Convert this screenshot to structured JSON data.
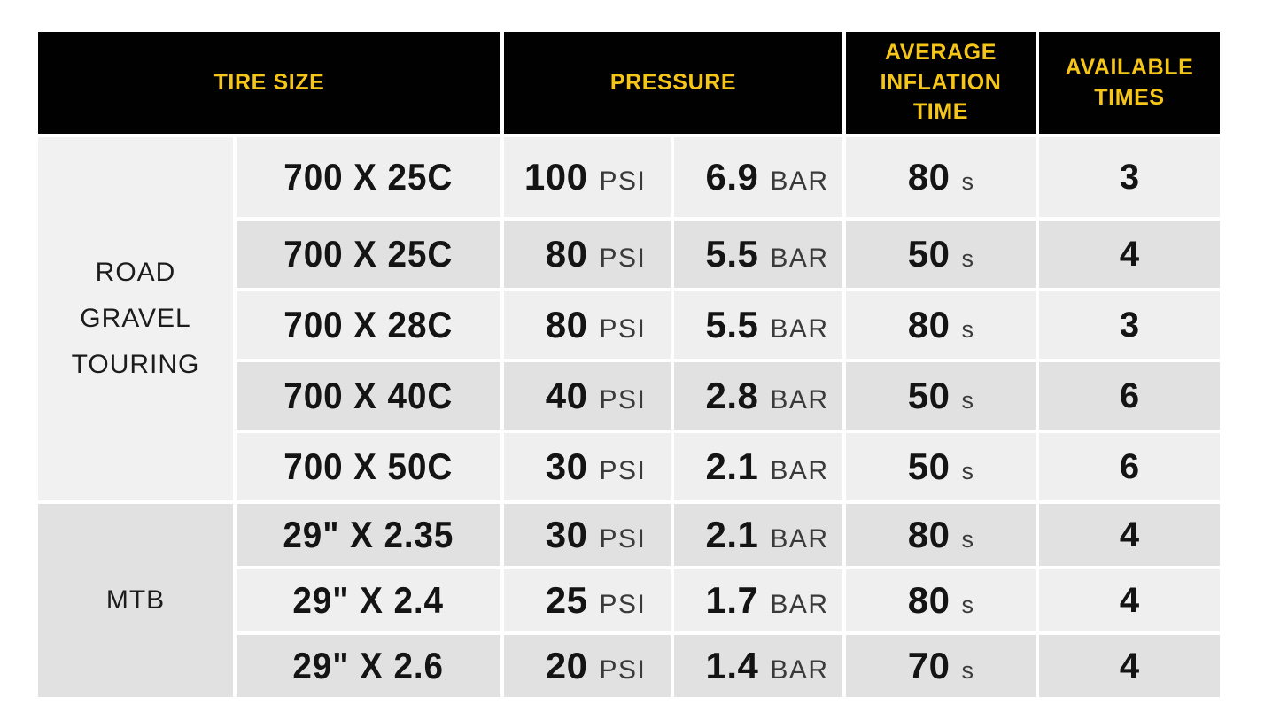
{
  "colors": {
    "header_bg": "#010101",
    "header_text": "#f5c518",
    "row_light": "#efefef",
    "row_dark": "#e1e1e1",
    "group_road_bg": "#f1f1f1",
    "group_mtb_bg": "#e1e1e1",
    "body_text": "#141414",
    "page_bg": "#ffffff"
  },
  "chart_data": {
    "type": "table",
    "columns": [
      "TIRE SIZE",
      "PRESSURE",
      "AVERAGE INFLATION TIME",
      "AVAILABLE TIMES"
    ],
    "units": {
      "psi": "PSI",
      "bar": "BAR",
      "time": "s"
    },
    "groups": [
      {
        "label_lines": [
          "ROAD",
          "GRAVEL",
          "TOURING"
        ],
        "rows": [
          {
            "size": "700 X 25C",
            "psi": "100",
            "bar": "6.9",
            "time": "80",
            "times": "3"
          },
          {
            "size": "700 X 25C",
            "psi": "80",
            "bar": "5.5",
            "time": "50",
            "times": "4"
          },
          {
            "size": "700 X 28C",
            "psi": "80",
            "bar": "5.5",
            "time": "80",
            "times": "3"
          },
          {
            "size": "700 X 40C",
            "psi": "40",
            "bar": "2.8",
            "time": "50",
            "times": "6"
          },
          {
            "size": "700 X 50C",
            "psi": "30",
            "bar": "2.1",
            "time": "50",
            "times": "6"
          }
        ]
      },
      {
        "label_lines": [
          "MTB"
        ],
        "rows": [
          {
            "size": "29\" X 2.35",
            "psi": "30",
            "bar": "2.1",
            "time": "80",
            "times": "4"
          },
          {
            "size": "29\" X 2.4",
            "psi": "25",
            "bar": "1.7",
            "time": "80",
            "times": "4"
          },
          {
            "size": "29\" X 2.6",
            "psi": "20",
            "bar": "1.4",
            "time": "70",
            "times": "4"
          }
        ]
      }
    ]
  }
}
